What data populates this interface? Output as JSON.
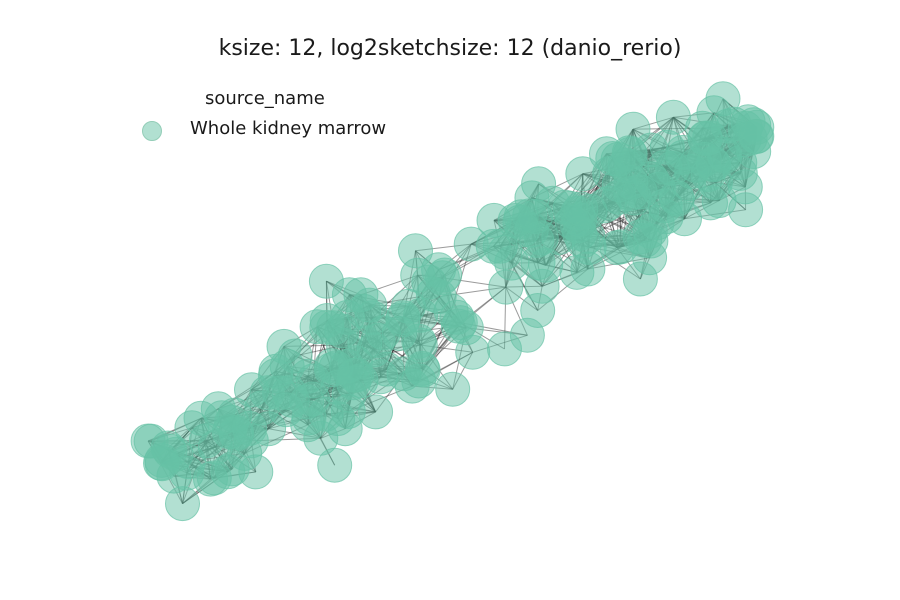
{
  "chart_data": {
    "type": "network",
    "title": "ksize: 12, log2sketchsize: 12 (danio_rerio)",
    "legend": {
      "title": "source_name",
      "entries": [
        {
          "label": "Whole kidney marrow",
          "color": "#66c2a5"
        }
      ]
    },
    "node_color": "#66c2a5",
    "edge_color": "#222222",
    "axes_visible": false,
    "grid": false
  }
}
